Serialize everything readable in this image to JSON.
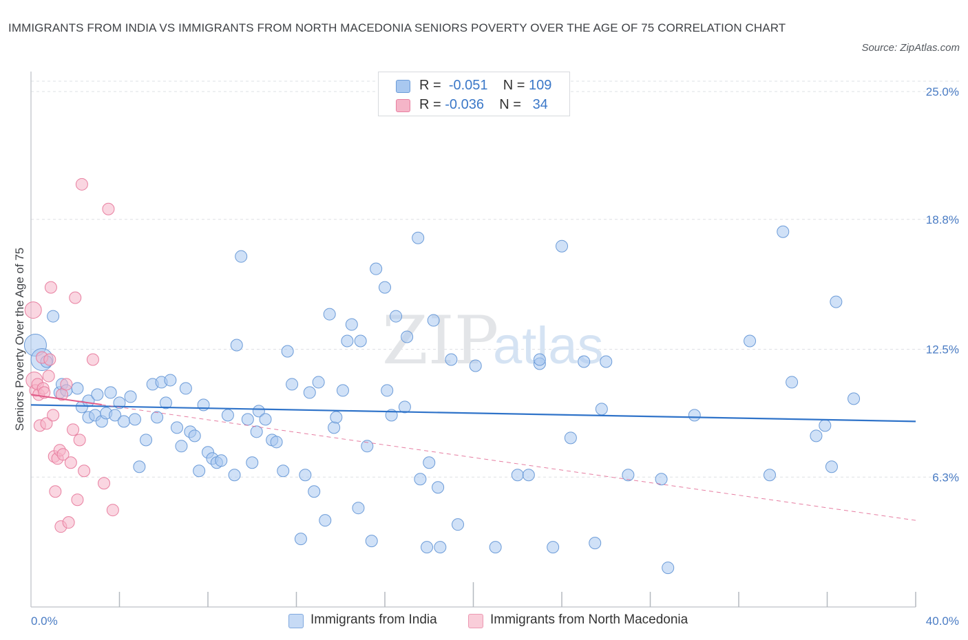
{
  "title": "IMMIGRANTS FROM INDIA VS IMMIGRANTS FROM NORTH MACEDONIA SENIORS POVERTY OVER THE AGE OF 75 CORRELATION CHART",
  "source": "Source: ZipAtlas.com",
  "watermark": {
    "zip": "ZIP",
    "atlas": "atlas"
  },
  "legend": {
    "india": {
      "r_label": "R =",
      "r_value": "-0.051",
      "n_label": "N =",
      "n_value": "109",
      "color": "#a9c8f0"
    },
    "macedonia": {
      "r_label": "R =",
      "r_value": "-0.036",
      "n_label": "N =",
      "n_value": "34",
      "color": "#f5b5c8"
    }
  },
  "bottom_legend": {
    "india": "Immigrants from India",
    "macedonia": "Immigrants from North Macedonia"
  },
  "chart_data": {
    "type": "scatter",
    "title": "IMMIGRANTS FROM INDIA VS IMMIGRANTS FROM NORTH MACEDONIA SENIORS POVERTY OVER THE AGE OF 75 CORRELATION CHART",
    "xlabel": "",
    "ylabel": "Seniors Poverty Over the Age of 75",
    "xlim": [
      0,
      40
    ],
    "ylim": [
      0,
      25
    ],
    "x_tick_labels": [
      "0.0%",
      "40.0%"
    ],
    "y_ticks": [
      6.3,
      12.5,
      18.8,
      25.0
    ],
    "y_tick_labels": [
      "6.3%",
      "12.5%",
      "18.8%",
      "25.0%"
    ],
    "grid": true,
    "legend_position": "top-center",
    "series": [
      {
        "name": "Immigrants from India",
        "color": "#a9c8f0",
        "edge": "#6b9bd8",
        "trend": {
          "x": [
            0,
            40
          ],
          "y": [
            9.8,
            9.0
          ],
          "color": "#2f73c9",
          "style": "solid"
        },
        "points": [
          {
            "x": 0.2,
            "y": 12.7,
            "big": true
          },
          {
            "x": 0.5,
            "y": 12.0,
            "big": true
          },
          {
            "x": 0.7,
            "y": 11.9
          },
          {
            "x": 1.0,
            "y": 14.1
          },
          {
            "x": 1.3,
            "y": 10.4
          },
          {
            "x": 1.4,
            "y": 10.8
          },
          {
            "x": 1.6,
            "y": 10.5
          },
          {
            "x": 2.1,
            "y": 10.6
          },
          {
            "x": 2.3,
            "y": 9.7
          },
          {
            "x": 2.6,
            "y": 10.0
          },
          {
            "x": 2.6,
            "y": 9.2
          },
          {
            "x": 2.9,
            "y": 9.3
          },
          {
            "x": 3.0,
            "y": 10.3
          },
          {
            "x": 3.2,
            "y": 9.0
          },
          {
            "x": 3.4,
            "y": 9.4
          },
          {
            "x": 3.6,
            "y": 10.4
          },
          {
            "x": 3.8,
            "y": 9.3
          },
          {
            "x": 4.0,
            "y": 9.9
          },
          {
            "x": 4.2,
            "y": 9.0
          },
          {
            "x": 4.5,
            "y": 10.2
          },
          {
            "x": 4.7,
            "y": 9.1
          },
          {
            "x": 4.9,
            "y": 6.8
          },
          {
            "x": 5.2,
            "y": 8.1
          },
          {
            "x": 5.5,
            "y": 10.8
          },
          {
            "x": 5.7,
            "y": 9.2
          },
          {
            "x": 5.9,
            "y": 10.9
          },
          {
            "x": 6.1,
            "y": 9.9
          },
          {
            "x": 6.3,
            "y": 11.0
          },
          {
            "x": 6.6,
            "y": 8.7
          },
          {
            "x": 6.8,
            "y": 7.8
          },
          {
            "x": 7.0,
            "y": 10.6
          },
          {
            "x": 7.2,
            "y": 8.5
          },
          {
            "x": 7.4,
            "y": 8.3
          },
          {
            "x": 7.6,
            "y": 6.6
          },
          {
            "x": 7.8,
            "y": 9.8
          },
          {
            "x": 8.0,
            "y": 7.5
          },
          {
            "x": 8.2,
            "y": 7.2
          },
          {
            "x": 8.4,
            "y": 7.0
          },
          {
            "x": 8.6,
            "y": 7.1
          },
          {
            "x": 8.9,
            "y": 9.3
          },
          {
            "x": 9.2,
            "y": 6.4
          },
          {
            "x": 9.3,
            "y": 12.7
          },
          {
            "x": 9.5,
            "y": 17.0
          },
          {
            "x": 9.8,
            "y": 9.1
          },
          {
            "x": 10.0,
            "y": 7.0
          },
          {
            "x": 10.2,
            "y": 8.5
          },
          {
            "x": 10.3,
            "y": 9.5
          },
          {
            "x": 10.6,
            "y": 9.1
          },
          {
            "x": 10.9,
            "y": 8.1
          },
          {
            "x": 11.1,
            "y": 8.0
          },
          {
            "x": 11.4,
            "y": 6.6
          },
          {
            "x": 11.6,
            "y": 12.4
          },
          {
            "x": 11.8,
            "y": 10.8
          },
          {
            "x": 12.2,
            "y": 3.3
          },
          {
            "x": 12.4,
            "y": 6.4
          },
          {
            "x": 12.6,
            "y": 10.4
          },
          {
            "x": 12.8,
            "y": 5.6
          },
          {
            "x": 13.0,
            "y": 10.9
          },
          {
            "x": 13.3,
            "y": 4.2
          },
          {
            "x": 13.5,
            "y": 14.2
          },
          {
            "x": 13.7,
            "y": 8.7
          },
          {
            "x": 13.8,
            "y": 9.2
          },
          {
            "x": 14.1,
            "y": 10.5
          },
          {
            "x": 14.3,
            "y": 12.9
          },
          {
            "x": 14.5,
            "y": 13.7
          },
          {
            "x": 14.8,
            "y": 4.8
          },
          {
            "x": 14.9,
            "y": 12.9
          },
          {
            "x": 15.2,
            "y": 7.8
          },
          {
            "x": 15.4,
            "y": 3.2
          },
          {
            "x": 15.6,
            "y": 16.4
          },
          {
            "x": 16.0,
            "y": 15.5
          },
          {
            "x": 16.1,
            "y": 10.5
          },
          {
            "x": 16.3,
            "y": 9.3
          },
          {
            "x": 16.5,
            "y": 14.1
          },
          {
            "x": 16.9,
            "y": 9.7
          },
          {
            "x": 17.0,
            "y": 13.1
          },
          {
            "x": 17.5,
            "y": 17.9
          },
          {
            "x": 17.6,
            "y": 6.2
          },
          {
            "x": 17.9,
            "y": 2.9
          },
          {
            "x": 18.0,
            "y": 7.0
          },
          {
            "x": 18.2,
            "y": 13.9
          },
          {
            "x": 18.4,
            "y": 5.8
          },
          {
            "x": 18.5,
            "y": 2.9
          },
          {
            "x": 19.0,
            "y": 12.0
          },
          {
            "x": 19.3,
            "y": 4.0
          },
          {
            "x": 20.1,
            "y": 11.7
          },
          {
            "x": 21.0,
            "y": 2.9
          },
          {
            "x": 22.0,
            "y": 6.4
          },
          {
            "x": 22.5,
            "y": 6.4
          },
          {
            "x": 23.0,
            "y": 11.8
          },
          {
            "x": 23.6,
            "y": 2.9
          },
          {
            "x": 24.0,
            "y": 17.5
          },
          {
            "x": 24.4,
            "y": 8.2
          },
          {
            "x": 25.0,
            "y": 11.9
          },
          {
            "x": 25.5,
            "y": 3.1
          },
          {
            "x": 25.8,
            "y": 9.6
          },
          {
            "x": 26.0,
            "y": 11.9
          },
          {
            "x": 27.0,
            "y": 6.4
          },
          {
            "x": 28.5,
            "y": 6.2
          },
          {
            "x": 30.0,
            "y": 9.3
          },
          {
            "x": 32.5,
            "y": 12.9
          },
          {
            "x": 33.4,
            "y": 6.4
          },
          {
            "x": 34.0,
            "y": 18.2
          },
          {
            "x": 34.4,
            "y": 10.9
          },
          {
            "x": 35.5,
            "y": 8.3
          },
          {
            "x": 35.9,
            "y": 8.8
          },
          {
            "x": 36.2,
            "y": 6.8
          },
          {
            "x": 36.4,
            "y": 14.8
          },
          {
            "x": 37.2,
            "y": 10.1
          },
          {
            "x": 28.8,
            "y": 1.9
          },
          {
            "x": 23.0,
            "y": 12.0
          }
        ]
      },
      {
        "name": "Immigrants from North Macedonia",
        "color": "#f5b5c8",
        "edge": "#e87fa0",
        "trend": {
          "x": [
            0,
            40
          ],
          "y": [
            10.3,
            4.2
          ],
          "color": "#e05c89",
          "style": "solid-short+dashed"
        },
        "points": [
          {
            "x": 0.1,
            "y": 14.4
          },
          {
            "x": 0.15,
            "y": 11.0
          },
          {
            "x": 0.2,
            "y": 10.5
          },
          {
            "x": 0.3,
            "y": 10.8
          },
          {
            "x": 0.35,
            "y": 10.3
          },
          {
            "x": 0.4,
            "y": 8.8
          },
          {
            "x": 0.5,
            "y": 12.1
          },
          {
            "x": 0.55,
            "y": 10.6
          },
          {
            "x": 0.6,
            "y": 10.4
          },
          {
            "x": 0.7,
            "y": 8.9
          },
          {
            "x": 0.8,
            "y": 11.2
          },
          {
            "x": 0.9,
            "y": 15.5
          },
          {
            "x": 0.85,
            "y": 12.0
          },
          {
            "x": 1.0,
            "y": 9.3
          },
          {
            "x": 1.05,
            "y": 7.3
          },
          {
            "x": 1.1,
            "y": 5.6
          },
          {
            "x": 1.2,
            "y": 7.2
          },
          {
            "x": 1.3,
            "y": 7.6
          },
          {
            "x": 1.35,
            "y": 3.9
          },
          {
            "x": 1.4,
            "y": 10.3
          },
          {
            "x": 1.45,
            "y": 7.4
          },
          {
            "x": 1.6,
            "y": 10.8
          },
          {
            "x": 1.7,
            "y": 4.1
          },
          {
            "x": 1.8,
            "y": 7.0
          },
          {
            "x": 1.9,
            "y": 8.6
          },
          {
            "x": 2.0,
            "y": 15.0
          },
          {
            "x": 2.1,
            "y": 5.2
          },
          {
            "x": 2.2,
            "y": 8.1
          },
          {
            "x": 2.3,
            "y": 20.5
          },
          {
            "x": 2.4,
            "y": 6.6
          },
          {
            "x": 2.8,
            "y": 12.0
          },
          {
            "x": 3.3,
            "y": 6.0
          },
          {
            "x": 3.5,
            "y": 19.3
          },
          {
            "x": 3.7,
            "y": 4.7
          }
        ]
      }
    ]
  }
}
